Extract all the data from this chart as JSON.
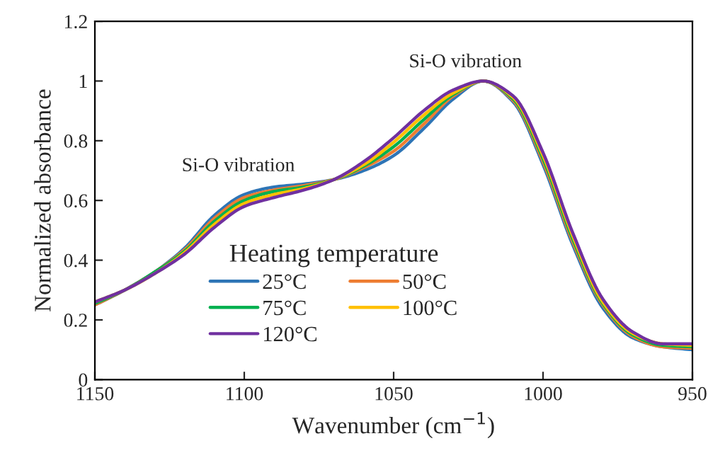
{
  "chart_data": {
    "type": "line",
    "xlabel": "Wavenumber (cm$^{−1}$)",
    "ylabel": "Normalized absorbance",
    "legend_title": "Heating temperature",
    "legend": "bottom",
    "grid": false,
    "line_style": "solid",
    "marker": "none",
    "x": [
      1150,
      1140,
      1130,
      1120,
      1110,
      1100,
      1090,
      1080,
      1070,
      1060,
      1050,
      1040,
      1030,
      1020,
      1010,
      1000,
      990,
      980,
      970,
      960,
      950
    ],
    "series": [
      {
        "name": "25°C",
        "color": "#2e75b6",
        "values": [
          0.25,
          0.3,
          0.36,
          0.44,
          0.55,
          0.62,
          0.645,
          0.655,
          0.67,
          0.7,
          0.75,
          0.84,
          0.94,
          1.0,
          0.93,
          0.72,
          0.45,
          0.24,
          0.14,
          0.11,
          0.1
        ]
      },
      {
        "name": "50°C",
        "color": "#ed7d31",
        "values": [
          0.25,
          0.3,
          0.36,
          0.435,
          0.54,
          0.61,
          0.635,
          0.65,
          0.67,
          0.71,
          0.765,
          0.855,
          0.95,
          1.0,
          0.935,
          0.73,
          0.46,
          0.25,
          0.145,
          0.11,
          0.105
        ]
      },
      {
        "name": "75°C",
        "color": "#00b050",
        "values": [
          0.255,
          0.3,
          0.36,
          0.43,
          0.53,
          0.6,
          0.63,
          0.645,
          0.67,
          0.715,
          0.78,
          0.87,
          0.955,
          1.0,
          0.94,
          0.74,
          0.47,
          0.255,
          0.15,
          0.115,
          0.11
        ]
      },
      {
        "name": "100°C",
        "color": "#ffc000",
        "values": [
          0.26,
          0.3,
          0.355,
          0.425,
          0.52,
          0.59,
          0.62,
          0.64,
          0.67,
          0.72,
          0.795,
          0.885,
          0.96,
          1.0,
          0.945,
          0.75,
          0.48,
          0.26,
          0.155,
          0.12,
          0.115
        ]
      },
      {
        "name": "120°C",
        "color": "#7030a0",
        "values": [
          0.26,
          0.3,
          0.355,
          0.42,
          0.51,
          0.58,
          0.61,
          0.635,
          0.67,
          0.73,
          0.81,
          0.9,
          0.97,
          1.0,
          0.95,
          0.76,
          0.49,
          0.27,
          0.16,
          0.12,
          0.12
        ]
      }
    ],
    "xlim": [
      1150,
      950
    ],
    "xticks": [
      1150,
      1100,
      1050,
      1000,
      950
    ],
    "ylim": [
      0,
      1.2
    ],
    "yticks": [
      0,
      0.2,
      0.4,
      0.6,
      0.8,
      1,
      1.2
    ],
    "annotations": [
      "Si-O vibration",
      "Si-O vibration"
    ]
  }
}
